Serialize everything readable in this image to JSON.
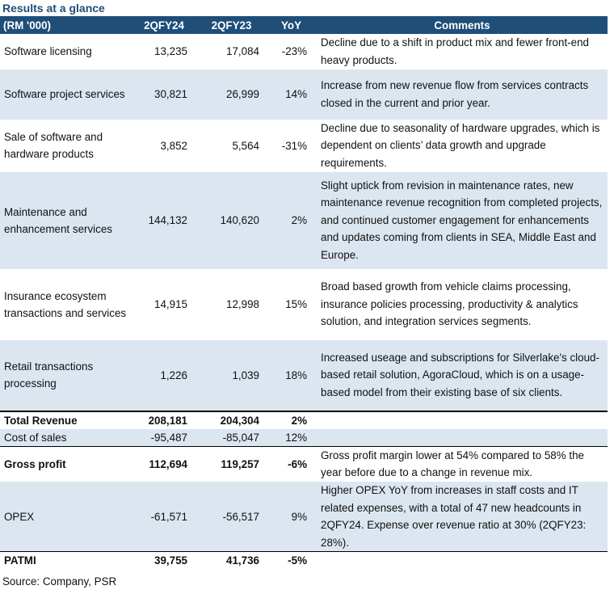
{
  "title": "Results at a glance",
  "headers": [
    "(RM '000)",
    "2QFY24",
    "2QFY23",
    "YoY",
    "Comments"
  ],
  "rows": [
    {
      "label": "Software licensing",
      "fy24": "13,235",
      "fy23": "17,084",
      "yoy": "-23%",
      "comment": "Decline due to a shift in product mix and fewer front-end heavy products."
    },
    {
      "label": "Software project services",
      "fy24": "30,821",
      "fy23": "26,999",
      "yoy": "14%",
      "comment": "Increase from new revenue flow from services contracts closed in the current and prior year."
    },
    {
      "label": "Sale of software and hardware products",
      "fy24": "3,852",
      "fy23": "5,564",
      "yoy": "-31%",
      "comment": "Decline due to seasonality of hardware upgrades, which is dependent on clients’ data growth and upgrade requirements."
    },
    {
      "label": "Maintenance and enhancement services",
      "fy24": "144,132",
      "fy23": "140,620",
      "yoy": "2%",
      "comment": "Slight uptick from revision in maintenance rates, new maintenance revenue recognition from completed projects, and continued customer engagement for enhancements and updates coming from clients in SEA, Middle East and Europe."
    },
    {
      "label": "Insurance ecosystem transactions and services",
      "fy24": "14,915",
      "fy23": "12,998",
      "yoy": "15%",
      "comment": "Broad based growth from vehicle claims processing, insurance policies processing, productivity & analytics solution, and integration services segments."
    },
    {
      "label": "Retail transactions processing",
      "fy24": "1,226",
      "fy23": "1,039",
      "yoy": "18%",
      "comment": "Increased useage and subscriptions for Silverlake's cloud-based retail solution, AgoraCloud, which is on a usage-based model from their existing base of six clients."
    },
    {
      "label": "Total Revenue",
      "fy24": "208,181",
      "fy23": "204,304",
      "yoy": "2%",
      "comment": ""
    },
    {
      "label": "Cost of sales",
      "fy24": "-95,487",
      "fy23": "-85,047",
      "yoy": "12%",
      "comment": ""
    },
    {
      "label": "Gross profit",
      "fy24": "112,694",
      "fy23": "119,257",
      "yoy": "-6%",
      "comment": "Gross profit margin lower at 54% compared to 58% the year before due to a change in revenue mix."
    },
    {
      "label": "OPEX",
      "fy24": "-61,571",
      "fy23": "-56,517",
      "yoy": "9%",
      "comment": "Higher OPEX YoY from increases in staff costs and IT related expenses, with a total of 47 new headcounts in 2QFY24. Expense over revenue ratio at 30% (2QFY23: 28%)."
    },
    {
      "label": "PATMI",
      "fy24": "39,755",
      "fy23": "41,736",
      "yoy": "-5%",
      "comment": ""
    }
  ],
  "source": "Source: Company, PSR"
}
